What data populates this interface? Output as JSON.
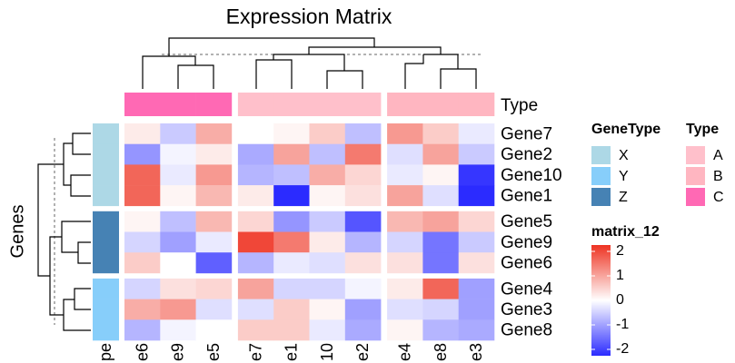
{
  "chart_data": {
    "type": "heatmap",
    "title": "Expression Matrix",
    "ylabel": "Genes",
    "columns": [
      "e6",
      "e9",
      "e5",
      "e7",
      "e1",
      "10",
      "e2",
      "e4",
      "e8",
      "e3"
    ],
    "rows": [
      "Gene7",
      "Gene2",
      "Gene10",
      "Gene1",
      "Gene5",
      "Gene9",
      "Gene6",
      "Gene4",
      "Gene3",
      "Gene8"
    ],
    "values": [
      [
        0.2,
        -0.5,
        0.8,
        0.0,
        0.1,
        0.5,
        -0.6,
        1.0,
        0.5,
        -0.2
      ],
      [
        -1.0,
        -0.1,
        0.2,
        -0.8,
        0.9,
        -0.6,
        1.3,
        -0.3,
        0.9,
        -0.5
      ],
      [
        1.5,
        -0.2,
        1.0,
        -0.7,
        -0.6,
        0.8,
        0.4,
        -0.2,
        0.1,
        -1.9
      ],
      [
        1.5,
        0.1,
        0.7,
        0.2,
        -2.0,
        0.1,
        0.3,
        0.9,
        -0.3,
        -2.0
      ],
      [
        0.1,
        -0.6,
        0.7,
        0.4,
        -1.0,
        -0.5,
        -1.6,
        0.7,
        0.9,
        0.4
      ],
      [
        -0.4,
        -0.9,
        -0.2,
        1.8,
        1.3,
        0.2,
        -0.7,
        -0.4,
        -1.3,
        -0.5
      ],
      [
        0.5,
        0.0,
        -1.5,
        -0.7,
        -0.2,
        -0.3,
        0.3,
        0.3,
        -1.3,
        0.3
      ],
      [
        -0.4,
        0.3,
        0.4,
        0.9,
        -0.4,
        -0.4,
        -0.1,
        0.2,
        1.5,
        -0.9
      ],
      [
        0.8,
        1.0,
        -0.3,
        -0.3,
        0.5,
        0.1,
        -0.9,
        -0.3,
        -0.4,
        -0.9
      ],
      [
        -0.7,
        -0.1,
        0.0,
        0.5,
        0.5,
        -0.2,
        -0.8,
        0.1,
        -0.7,
        -0.8
      ]
    ],
    "column_annotation": {
      "name": "Type",
      "column_label": "pe",
      "levels": [
        "A",
        "B",
        "C"
      ],
      "colors": [
        "#FFC0CB",
        "#FFB6C1",
        "#FF69B4"
      ],
      "values": [
        "C",
        "C",
        "C",
        "A",
        "A",
        "A",
        "A",
        "B",
        "B",
        "B"
      ]
    },
    "row_annotation": {
      "name": "GeneType",
      "levels": [
        "X",
        "Y",
        "Z"
      ],
      "colors": [
        "#ADD8E6",
        "#87CEFA",
        "#4682B4"
      ],
      "values": [
        "X",
        "X",
        "X",
        "X",
        "Z",
        "Z",
        "Z",
        "Y",
        "Y",
        "Y"
      ]
    },
    "colorscale": {
      "name": "matrix_12",
      "lim": [
        -2,
        2
      ],
      "ticks": [
        2,
        1,
        0,
        -1,
        -2
      ],
      "colors": [
        "#2B2BFF",
        "#FFFFFF",
        "#EE3322"
      ]
    }
  }
}
